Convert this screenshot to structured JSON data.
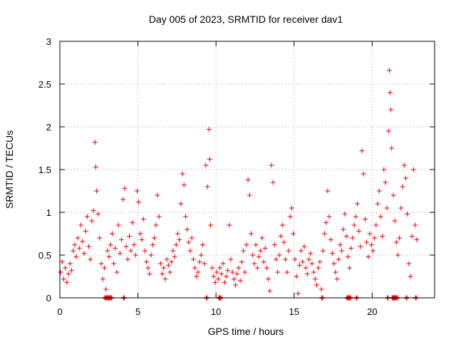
{
  "chart_data": {
    "type": "scatter",
    "title": "Day 005 of 2023, SRMTID for receiver dav1",
    "xlabel": "GPS time / hours",
    "ylabel": "SRMTID / TECUs",
    "xlim": [
      0,
      24
    ],
    "ylim": [
      0,
      3
    ],
    "xticks": [
      0,
      5,
      10,
      15,
      20
    ],
    "yticks": [
      0,
      0.5,
      1,
      1.5,
      2,
      2.5,
      3
    ],
    "grid": true,
    "marker": "+",
    "series_color": "#e8000b",
    "series": [
      {
        "name": "SRMTID",
        "points": [
          [
            0.05,
            0.3
          ],
          [
            0.15,
            0.42
          ],
          [
            0.25,
            0.22
          ],
          [
            0.35,
            0.35
          ],
          [
            0.45,
            0.18
          ],
          [
            0.55,
            0.28
          ],
          [
            0.65,
            0.4
          ],
          [
            0.75,
            0.32
          ],
          [
            0.85,
            0.55
          ],
          [
            0.95,
            0.62
          ],
          [
            1.05,
            0.48
          ],
          [
            1.15,
            0.7
          ],
          [
            1.25,
            0.58
          ],
          [
            1.35,
            0.85
          ],
          [
            1.45,
            0.66
          ],
          [
            1.55,
            0.52
          ],
          [
            1.65,
            0.78
          ],
          [
            1.75,
            0.95
          ],
          [
            1.85,
            0.6
          ],
          [
            1.95,
            0.45
          ],
          [
            2.05,
            0.9
          ],
          [
            2.15,
            1.02
          ],
          [
            2.25,
            1.82
          ],
          [
            2.3,
            1.53
          ],
          [
            2.35,
            1.25
          ],
          [
            2.45,
            0.98
          ],
          [
            2.55,
            0.7
          ],
          [
            2.65,
            0.4
          ],
          [
            2.75,
            0.22
          ],
          [
            2.85,
            0.35
          ],
          [
            2.95,
            0.1
          ],
          [
            3.05,
            0.55
          ],
          [
            3.15,
            0.48
          ],
          [
            3.25,
            0.62
          ],
          [
            3.35,
            0.75
          ],
          [
            3.45,
            0.4
          ],
          [
            3.55,
            0.58
          ],
          [
            3.65,
            0.3
          ],
          [
            3.75,
            0.85
          ],
          [
            3.85,
            0.52
          ],
          [
            3.95,
            0.68
          ],
          [
            4.05,
            1.15
          ],
          [
            4.15,
            1.28
          ],
          [
            4.25,
            0.6
          ],
          [
            4.35,
            0.45
          ],
          [
            4.45,
            0.72
          ],
          [
            4.55,
            0.55
          ],
          [
            4.65,
            0.88
          ],
          [
            4.75,
            0.62
          ],
          [
            4.85,
            0.5
          ],
          [
            4.95,
            1.25
          ],
          [
            5.05,
            1.12
          ],
          [
            5.15,
            0.75
          ],
          [
            5.25,
            0.68
          ],
          [
            5.35,
            0.92
          ],
          [
            5.45,
            0.55
          ],
          [
            5.55,
            0.42
          ],
          [
            5.65,
            0.35
          ],
          [
            5.75,
            0.28
          ],
          [
            5.85,
            0.5
          ],
          [
            5.95,
            0.62
          ],
          [
            6.05,
            0.7
          ],
          [
            6.15,
            0.85
          ],
          [
            6.25,
            1.2
          ],
          [
            6.35,
            0.95
          ],
          [
            6.45,
            0.4
          ],
          [
            6.55,
            0.28
          ],
          [
            6.65,
            0.35
          ],
          [
            6.75,
            0.22
          ],
          [
            6.85,
            0.45
          ],
          [
            6.95,
            0.38
          ],
          [
            7.05,
            0.3
          ],
          [
            7.15,
            0.42
          ],
          [
            7.25,
            0.55
          ],
          [
            7.35,
            0.48
          ],
          [
            7.45,
            0.62
          ],
          [
            7.55,
            0.75
          ],
          [
            7.65,
            0.68
          ],
          [
            7.75,
            1.1
          ],
          [
            7.85,
            1.45
          ],
          [
            7.95,
            1.32
          ],
          [
            8.05,
            0.95
          ],
          [
            8.15,
            0.8
          ],
          [
            8.25,
            0.65
          ],
          [
            8.35,
            0.55
          ],
          [
            8.45,
            0.7
          ],
          [
            8.55,
            0.45
          ],
          [
            8.65,
            0.35
          ],
          [
            8.75,
            0.25
          ],
          [
            8.85,
            0.3
          ],
          [
            8.95,
            0.42
          ],
          [
            9.05,
            0.5
          ],
          [
            9.15,
            0.62
          ],
          [
            9.25,
            0.4
          ],
          [
            9.35,
            1.55
          ],
          [
            9.45,
            1.3
          ],
          [
            9.55,
            1.97
          ],
          [
            9.6,
            1.62
          ],
          [
            9.65,
            0.85
          ],
          [
            9.75,
            0.35
          ],
          [
            9.85,
            0.25
          ],
          [
            9.95,
            0.18
          ],
          [
            10.05,
            0.3
          ],
          [
            10.15,
            0.22
          ],
          [
            10.25,
            0.35
          ],
          [
            10.35,
            0.28
          ],
          [
            10.45,
            0.4
          ],
          [
            10.55,
            0.18
          ],
          [
            10.65,
            0.25
          ],
          [
            10.75,
            0.32
          ],
          [
            10.85,
            0.85
          ],
          [
            10.95,
            0.45
          ],
          [
            11.05,
            0.3
          ],
          [
            11.15,
            0.22
          ],
          [
            11.25,
            0.15
          ],
          [
            11.35,
            0.28
          ],
          [
            11.45,
            0.35
          ],
          [
            11.55,
            0.2
          ],
          [
            11.65,
            0.42
          ],
          [
            11.75,
            0.55
          ],
          [
            11.85,
            0.3
          ],
          [
            11.95,
            0.62
          ],
          [
            12.05,
            1.38
          ],
          [
            12.15,
            1.2
          ],
          [
            12.25,
            0.75
          ],
          [
            12.35,
            0.5
          ],
          [
            12.45,
            0.4
          ],
          [
            12.55,
            0.62
          ],
          [
            12.65,
            0.35
          ],
          [
            12.75,
            0.48
          ],
          [
            12.85,
            0.55
          ],
          [
            12.95,
            0.7
          ],
          [
            13.05,
            0.42
          ],
          [
            13.15,
            0.58
          ],
          [
            13.25,
            0.35
          ],
          [
            13.35,
            0.22
          ],
          [
            13.45,
            0.08
          ],
          [
            13.55,
            1.55
          ],
          [
            13.65,
            1.35
          ],
          [
            13.75,
            0.62
          ],
          [
            13.85,
            0.45
          ],
          [
            13.95,
            0.3
          ],
          [
            14.05,
            0.5
          ],
          [
            14.15,
            0.72
          ],
          [
            14.25,
            0.85
          ],
          [
            14.35,
            0.65
          ],
          [
            14.45,
            0.45
          ],
          [
            14.55,
            0.3
          ],
          [
            14.65,
            0.55
          ],
          [
            14.75,
            0.95
          ],
          [
            14.85,
            1.05
          ],
          [
            14.95,
            0.75
          ],
          [
            15.05,
            0.45
          ],
          [
            15.15,
            0.25
          ],
          [
            15.25,
            0.05
          ],
          [
            15.35,
            0.38
          ],
          [
            15.45,
            0.55
          ],
          [
            15.55,
            0.42
          ],
          [
            15.65,
            0.6
          ],
          [
            15.75,
            0.35
          ],
          [
            15.85,
            0.28
          ],
          [
            15.95,
            0.45
          ],
          [
            16.05,
            0.52
          ],
          [
            16.15,
            0.4
          ],
          [
            16.25,
            0.3
          ],
          [
            16.35,
            0.22
          ],
          [
            16.45,
            0.15
          ],
          [
            16.55,
            0.35
          ],
          [
            16.65,
            0.42
          ],
          [
            16.75,
            0.1
          ],
          [
            16.85,
            0.55
          ],
          [
            16.95,
            0.75
          ],
          [
            17.05,
            0.88
          ],
          [
            17.15,
            1.25
          ],
          [
            17.25,
            0.95
          ],
          [
            17.35,
            0.68
          ],
          [
            17.45,
            0.52
          ],
          [
            17.55,
            0.4
          ],
          [
            17.65,
            0.3
          ],
          [
            17.75,
            0.22
          ],
          [
            17.85,
            0.45
          ],
          [
            17.95,
            0.62
          ],
          [
            18.05,
            0.55
          ],
          [
            18.15,
            0.8
          ],
          [
            18.25,
            0.98
          ],
          [
            18.35,
            0.72
          ],
          [
            18.45,
            0.48
          ],
          [
            18.55,
            0.35
          ],
          [
            18.65,
            0.58
          ],
          [
            18.75,
            0.7
          ],
          [
            18.85,
            0.85
          ],
          [
            18.95,
            0.95
          ],
          [
            19.05,
            1.1
          ],
          [
            19.15,
            0.78
          ],
          [
            19.25,
            0.6
          ],
          [
            19.35,
            1.72
          ],
          [
            19.45,
            1.45
          ],
          [
            19.55,
            0.92
          ],
          [
            19.65,
            0.65
          ],
          [
            19.75,
            0.48
          ],
          [
            19.85,
            0.75
          ],
          [
            19.95,
            0.62
          ],
          [
            20.05,
            0.55
          ],
          [
            20.15,
            0.7
          ],
          [
            20.25,
            0.85
          ],
          [
            20.35,
            1.1
          ],
          [
            20.45,
            1.25
          ],
          [
            20.55,
            0.95
          ],
          [
            20.65,
            0.72
          ],
          [
            20.75,
            1.5
          ],
          [
            20.85,
            1.35
          ],
          [
            20.95,
            1.05
          ],
          [
            21.05,
            1.95
          ],
          [
            21.1,
            2.66
          ],
          [
            21.15,
            2.4
          ],
          [
            21.2,
            2.2
          ],
          [
            21.25,
            1.75
          ],
          [
            21.35,
            1.2
          ],
          [
            21.45,
            0.9
          ],
          [
            21.55,
            0.65
          ],
          [
            21.65,
            0.5
          ],
          [
            21.75,
            0.7
          ],
          [
            21.85,
            1.05
          ],
          [
            21.95,
            1.3
          ],
          [
            22.05,
            1.55
          ],
          [
            22.15,
            1.4
          ],
          [
            22.25,
            0.98
          ],
          [
            22.35,
            0.4
          ],
          [
            22.45,
            0.25
          ],
          [
            22.55,
            0.72
          ],
          [
            22.65,
            1.5
          ],
          [
            22.75,
            0.85
          ],
          [
            22.85,
            0.68
          ]
        ]
      }
    ],
    "zero_band": [
      2.9,
      3.0,
      3.1,
      3.2,
      3.3,
      4.1,
      9.4,
      10.2,
      10.3,
      16.8,
      18.4,
      18.5,
      18.6,
      19.0,
      21.0,
      21.3,
      21.4,
      21.5,
      21.6,
      22.2,
      22.8
    ]
  }
}
